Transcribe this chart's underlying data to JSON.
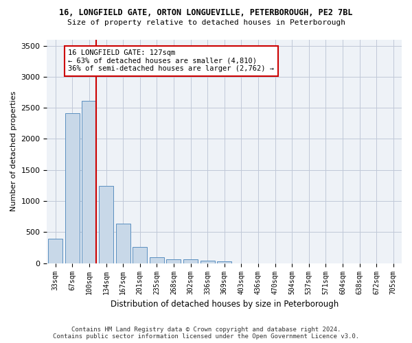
{
  "title1": "16, LONGFIELD GATE, ORTON LONGUEVILLE, PETERBOROUGH, PE2 7BL",
  "title2": "Size of property relative to detached houses in Peterborough",
  "xlabel": "Distribution of detached houses by size in Peterborough",
  "ylabel": "Number of detached properties",
  "categories": [
    "33sqm",
    "67sqm",
    "100sqm",
    "134sqm",
    "167sqm",
    "201sqm",
    "235sqm",
    "268sqm",
    "302sqm",
    "336sqm",
    "369sqm",
    "403sqm",
    "436sqm",
    "470sqm",
    "504sqm",
    "537sqm",
    "571sqm",
    "604sqm",
    "638sqm",
    "672sqm",
    "705sqm"
  ],
  "values": [
    390,
    2410,
    2610,
    1240,
    640,
    260,
    100,
    60,
    60,
    40,
    30,
    0,
    0,
    0,
    0,
    0,
    0,
    0,
    0,
    0,
    0
  ],
  "bar_color": "#c8d8e8",
  "bar_edge_color": "#5a8fc0",
  "annotation_line1": "16 LONGFIELD GATE: 127sqm",
  "annotation_line2": "← 63% of detached houses are smaller (4,810)",
  "annotation_line3": "36% of semi-detached houses are larger (2,762) →",
  "vline_color": "#cc0000",
  "vline_x": 2.43,
  "ylim": [
    0,
    3600
  ],
  "yticks": [
    0,
    500,
    1000,
    1500,
    2000,
    2500,
    3000,
    3500
  ],
  "footer1": "Contains HM Land Registry data © Crown copyright and database right 2024.",
  "footer2": "Contains public sector information licensed under the Open Government Licence v3.0.",
  "bg_color": "#eef2f7",
  "grid_color": "#c0c8d8"
}
